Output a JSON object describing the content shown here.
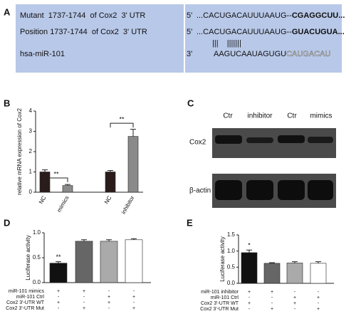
{
  "panel_labels": [
    "A",
    "B",
    "C",
    "D",
    "E"
  ],
  "panel_a": {
    "rows": [
      {
        "label": "Mutant  1737-1744  of Cox2  3' UTR",
        "end": "5'",
        "seq": "...CACUGACAUUUAAUG--",
        "site": "CGAGGCUU..."
      },
      {
        "label": "Position 1737-1744  of Cox2  3' UTR",
        "end": "5'",
        "seq": "...CACUGACAUUUAAUG--",
        "site": "GUACUGUA..."
      },
      {
        "label": "hsa-miR-101",
        "end": "3'",
        "seq": "AAGUCAAUAGUGU",
        "site": "CAUGACAU"
      }
    ],
    "pairing": "|||    |||||||"
  },
  "panel_c": {
    "lanes": [
      "Ctr",
      "inhibitor",
      "Ctr",
      "mimics"
    ],
    "rows": [
      "Cox2",
      "β-actin"
    ]
  },
  "chart_data": [
    {
      "type": "bar",
      "y_label": "relative mRNA expression of Cox2",
      "categories": [
        "NC",
        "mimics",
        "NC",
        "inhibitor"
      ],
      "values": [
        1.0,
        0.33,
        1.0,
        2.75
      ],
      "errors": [
        0.1,
        0.05,
        0.07,
        0.35
      ],
      "colors": [
        "#2b1c1c",
        "#8a8a8a",
        "#2b1c1c",
        "#8a8a8a"
      ],
      "ylim": [
        0,
        4
      ],
      "yticks": [
        0,
        1,
        2,
        3,
        4
      ],
      "annotations": [
        "**",
        "**"
      ]
    },
    {
      "type": "bar",
      "y_label": "Luciferase activity",
      "values": [
        0.39,
        0.83,
        0.83,
        0.86
      ],
      "errors": [
        0.03,
        0.03,
        0.03,
        0.02
      ],
      "colors": [
        "#111111",
        "#666666",
        "#aaaaaa",
        "#ffffff"
      ],
      "ylim": [
        0,
        1.0
      ],
      "yticks": [
        {
          "value": 0,
          "label": "0.0"
        },
        {
          "value": 0.5,
          "label": "0.5"
        },
        {
          "value": 1.0,
          "label": "1.0"
        }
      ],
      "annotations": [
        "**"
      ],
      "conditions": [
        {
          "label": "miR-101 mimics",
          "signs": [
            "+",
            "+",
            "-",
            "-"
          ]
        },
        {
          "label": "miR-101 Ctrl",
          "signs": [
            "-",
            "-",
            "+",
            "+"
          ]
        },
        {
          "label": "Cox2 3'-UTR WT",
          "signs": [
            "+",
            "-",
            "+",
            "-"
          ]
        },
        {
          "label": "Cox2 3'-UTR Mut",
          "signs": [
            "-",
            "+",
            "-",
            "+"
          ]
        }
      ]
    },
    {
      "type": "bar",
      "y_label": "Luciferase activity",
      "values": [
        0.95,
        0.62,
        0.63,
        0.62
      ],
      "errors": [
        0.08,
        0.02,
        0.04,
        0.05
      ],
      "colors": [
        "#111111",
        "#666666",
        "#aaaaaa",
        "#ffffff"
      ],
      "ylim": [
        0,
        1.5
      ],
      "yticks": [
        {
          "value": 0,
          "label": "0.0"
        },
        {
          "value": 0.5,
          "label": "0.5"
        },
        {
          "value": 1.0,
          "label": "1.0"
        },
        {
          "value": 1.5,
          "label": "1.5"
        }
      ],
      "annotations": [
        "*"
      ],
      "conditions": [
        {
          "label": "miR-101 inhibitor",
          "signs": [
            "+",
            "+",
            "-",
            "-"
          ]
        },
        {
          "label": "miR-101 Ctrl",
          "signs": [
            "-",
            "-",
            "+",
            "+"
          ]
        },
        {
          "label": "Cox2 3'-UTR WT",
          "signs": [
            "+",
            "-",
            "+",
            "-"
          ]
        },
        {
          "label": "Cox2 3'-UTR Mut",
          "signs": [
            "-",
            "+",
            "-",
            "+"
          ]
        }
      ]
    }
  ]
}
